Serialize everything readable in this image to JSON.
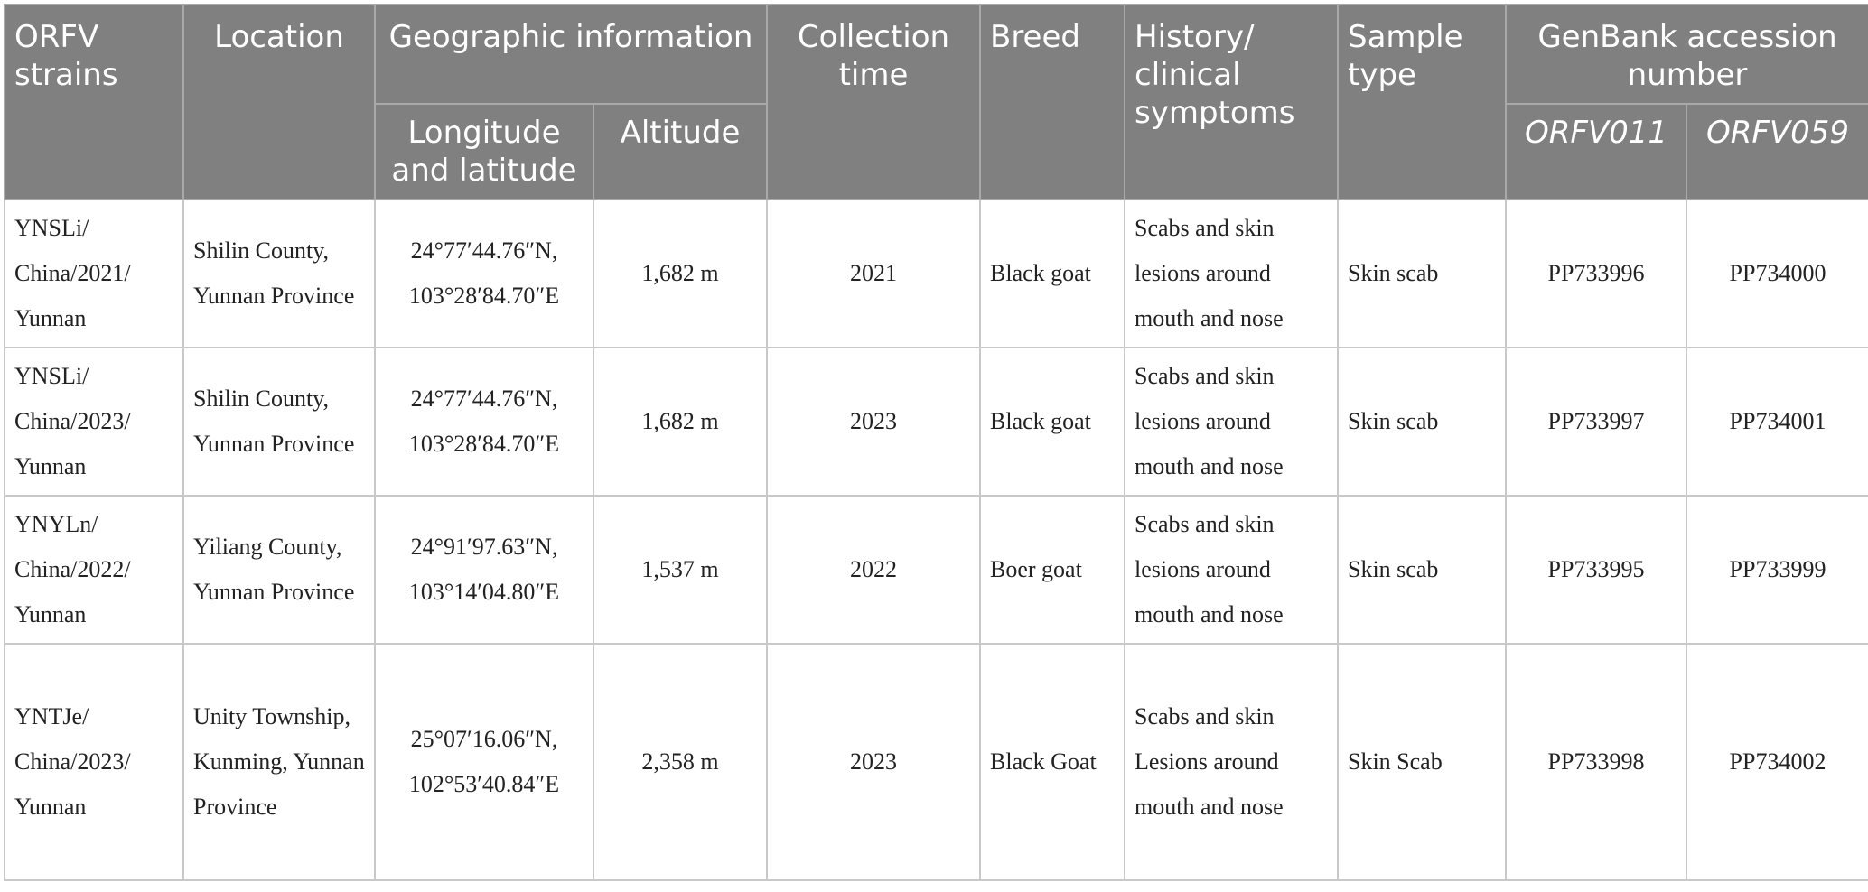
{
  "headers": {
    "strains": "ORFV strains",
    "location": "Location",
    "geo": "Geographic information",
    "lonlat": "Longitude and latitude",
    "altitude": "Altitude",
    "collection": "Collection time",
    "breed": "Breed",
    "history": "History/ clinical symptoms",
    "sample": "Sample type",
    "genbank": "GenBank accession number",
    "orfv011": "ORFV011",
    "orfv059": "ORFV059"
  },
  "rows": [
    {
      "strain": "YNSLi/ China/2021/ Yunnan",
      "location": "Shilin County, Yunnan Province",
      "lonlat": "24°77′44.76″N, 103°28′84.70″E",
      "altitude": "1,682 m",
      "time": "2021",
      "breed": "Black goat",
      "history": "Scabs and skin lesions around mouth and nose",
      "sample": "Skin scab",
      "orfv011": "PP733996",
      "orfv059": "PP734000"
    },
    {
      "strain": "YNSLi/ China/2023/ Yunnan",
      "location": "Shilin County, Yunnan Province",
      "lonlat": "24°77′44.76″N, 103°28′84.70″E",
      "altitude": "1,682 m",
      "time": "2023",
      "breed": "Black goat",
      "history": "Scabs and skin lesions around mouth and nose",
      "sample": "Skin scab",
      "orfv011": "PP733997",
      "orfv059": "PP734001"
    },
    {
      "strain": "YNYLn/ China/2022/ Yunnan",
      "location": "Yiliang County, Yunnan Province",
      "lonlat": "24°91′97.63″N, 103°14′04.80″E",
      "altitude": "1,537 m",
      "time": "2022",
      "breed": "Boer goat",
      "history": "Scabs and skin lesions around mouth and nose",
      "sample": "Skin scab",
      "orfv011": "PP733995",
      "orfv059": "PP733999"
    },
    {
      "strain": "YNTJe/ China/2023/ Yunnan",
      "location": "Unity Township, Kunming, Yunnan Province",
      "lonlat": "25°07′16.06″N, 102°53′40.84″E",
      "altitude": "2,358 m",
      "time": "2023",
      "breed": "Black Goat",
      "history": "Scabs and skin Lesions around mouth and nose",
      "sample": "Skin Scab",
      "orfv011": "PP733998",
      "orfv059": "PP734002"
    }
  ]
}
